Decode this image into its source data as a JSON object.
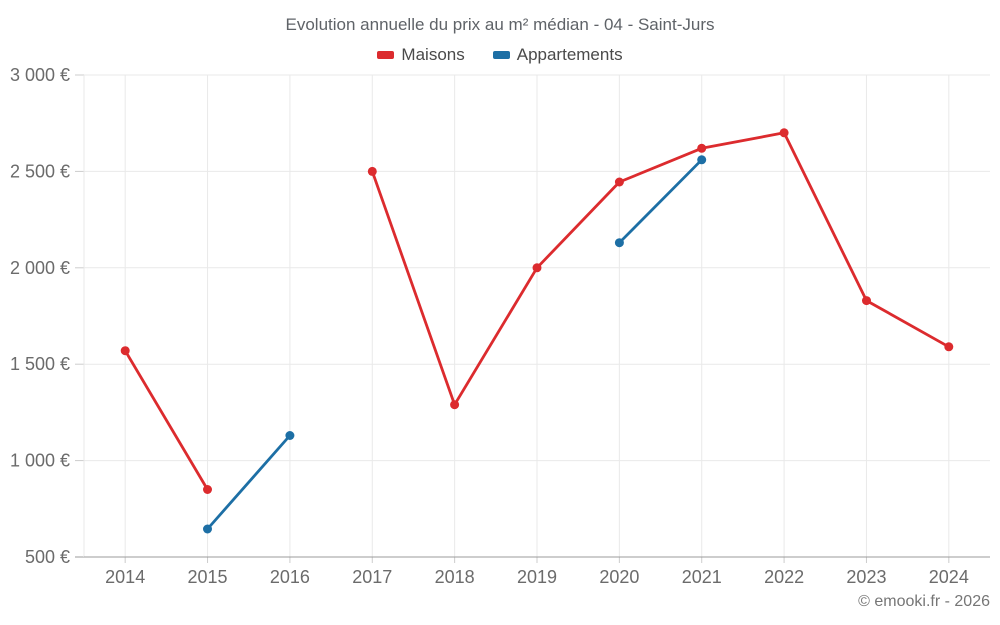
{
  "chart_data": {
    "type": "line",
    "title": "Evolution annuelle du prix au m² médian - 04 - Saint-Jurs",
    "x": [
      "2014",
      "2015",
      "2016",
      "2017",
      "2018",
      "2019",
      "2020",
      "2021",
      "2022",
      "2023",
      "2024"
    ],
    "series": [
      {
        "name": "Maisons",
        "color": "#dc2b2e",
        "values": [
          1570,
          850,
          null,
          2500,
          1290,
          2000,
          2445,
          2620,
          2700,
          1830,
          1590
        ]
      },
      {
        "name": "Appartements",
        "color": "#1d6fa5",
        "values": [
          null,
          645,
          1130,
          null,
          null,
          null,
          2130,
          2560,
          null,
          null,
          null
        ]
      }
    ],
    "ylim": [
      500,
      3000
    ],
    "yticks": [
      500,
      1000,
      1500,
      2000,
      2500,
      3000
    ],
    "ytick_labels": [
      "500 €",
      "1 000 €",
      "1 500 €",
      "2 000 €",
      "2 500 €",
      "3 000 €"
    ],
    "xlabel": "",
    "ylabel": "",
    "grid": true,
    "legend_position": "top"
  },
  "colors": {
    "grid": "#e9e9e9",
    "axis": "#9b9b9b",
    "tick": "#cccccc",
    "axis_text": "#6b6b6b"
  },
  "footer": {
    "copyright": "© emooki.fr - 2026"
  }
}
